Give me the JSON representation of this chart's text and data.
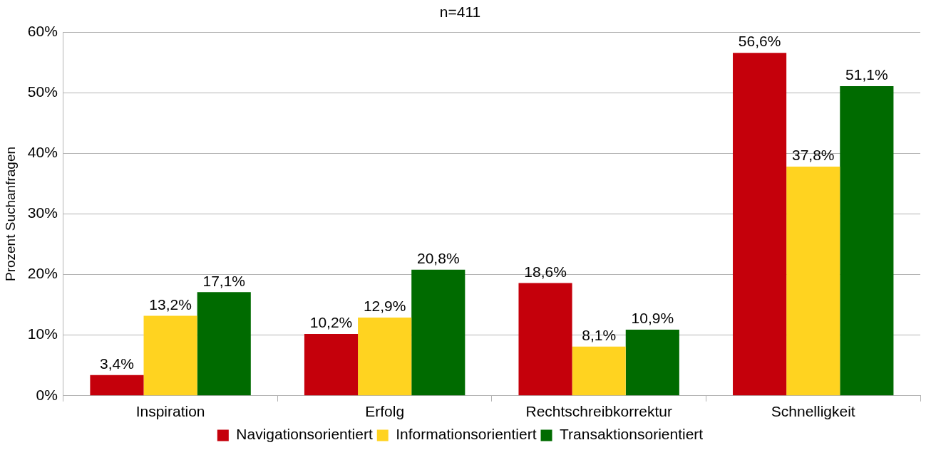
{
  "chart_data": {
    "type": "bar",
    "title": "n=411",
    "ylabel": "Prozent Suchanfragen",
    "categories": [
      "Inspiration",
      "Erfolg",
      "Rechtschreibkorrektur",
      "Schnelligkeit"
    ],
    "series": [
      {
        "name": "Navigationsorientiert",
        "color": "#c5000b",
        "values": [
          3.4,
          10.2,
          18.6,
          56.6
        ],
        "value_labels": [
          "3,4%",
          "10,2%",
          "18,6%",
          "56,6%"
        ]
      },
      {
        "name": "Informationsorientiert",
        "color": "#ffd320",
        "values": [
          13.2,
          12.9,
          8.1,
          37.8
        ],
        "value_labels": [
          "13,2%",
          "12,9%",
          "8,1%",
          "37,8%"
        ]
      },
      {
        "name": "Transaktionsorientiert",
        "color": "#006b00",
        "values": [
          17.1,
          20.8,
          10.9,
          51.1
        ],
        "value_labels": [
          "17,1%",
          "20,8%",
          "10,9%",
          "51,1%"
        ]
      }
    ],
    "ylim": [
      0,
      60
    ],
    "yticks": [
      {
        "value": 0,
        "label": "0%"
      },
      {
        "value": 10,
        "label": "10%"
      },
      {
        "value": 20,
        "label": "20%"
      },
      {
        "value": 30,
        "label": "30%"
      },
      {
        "value": 40,
        "label": "40%"
      },
      {
        "value": 50,
        "label": "50%"
      },
      {
        "value": 60,
        "label": "60%"
      }
    ],
    "grid": "y",
    "legend": "bottom"
  }
}
